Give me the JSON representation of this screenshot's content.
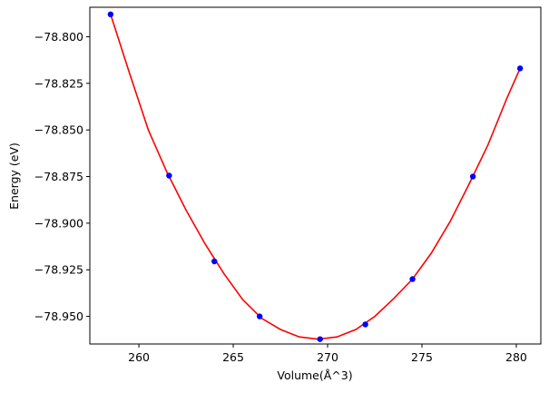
{
  "chart_data": {
    "type": "scatter",
    "title": "",
    "xlabel": "Volume(Å^3)",
    "ylabel": "Energy (eV)",
    "xlim": [
      257.4,
      281.3
    ],
    "ylim": [
      -78.9648,
      -78.7842
    ],
    "xticks": [
      260,
      265,
      270,
      275,
      280
    ],
    "xtick_labels": [
      "260",
      "265",
      "270",
      "275",
      "280"
    ],
    "yticks": [
      -78.8,
      -78.825,
      -78.85,
      -78.875,
      -78.9,
      -78.925,
      -78.95
    ],
    "ytick_labels": [
      "−78.800",
      "−78.825",
      "−78.850",
      "−78.875",
      "−78.900",
      "−78.925",
      "−78.950"
    ],
    "grid": false,
    "series": [
      {
        "kind": "points",
        "color": "#0000ff",
        "x": [
          258.5,
          261.6,
          264.0,
          266.4,
          269.6,
          272.0,
          274.5,
          277.7,
          280.2
        ],
        "y": [
          -78.788,
          -78.8745,
          -78.9205,
          -78.95,
          -78.9622,
          -78.9543,
          -78.93,
          -78.875,
          -78.817
        ]
      },
      {
        "kind": "fit",
        "color": "#ff0000",
        "x": [
          258.5,
          259.5,
          260.5,
          261.5,
          262.5,
          263.5,
          264.5,
          265.5,
          266.5,
          267.5,
          268.5,
          269.5,
          270.5,
          271.5,
          272.5,
          273.5,
          274.5,
          275.5,
          276.5,
          277.5,
          278.5,
          279.5,
          280.2
        ],
        "y": [
          -78.788,
          -78.8195,
          -78.85,
          -78.873,
          -78.893,
          -78.911,
          -78.927,
          -78.941,
          -78.951,
          -78.957,
          -78.961,
          -78.9622,
          -78.961,
          -78.957,
          -78.95,
          -78.9405,
          -78.93,
          -78.916,
          -78.899,
          -78.879,
          -78.858,
          -78.833,
          -78.817
        ]
      }
    ]
  }
}
